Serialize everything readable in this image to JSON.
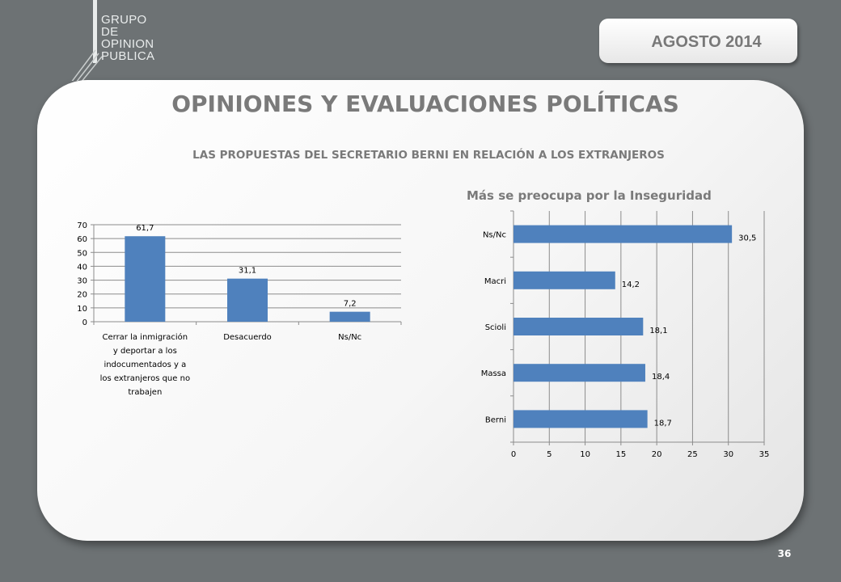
{
  "header": {
    "logo_lines": [
      "GRUPO",
      "DE",
      "OPINION",
      "PUBLICA"
    ],
    "date": "AGOSTO 2014"
  },
  "title": "OPINIONES Y EVALUACIONES POLÍTICAS",
  "subtitle": "LAS PROPUESTAS DEL SECRETARIO BERNI EN RELACIÓN A LOS EXTRANJEROS",
  "colors": {
    "bar": "#4f81bd",
    "background": "#6d7274",
    "text_gray": "#7a7a7a"
  },
  "page_number": "36",
  "chart_data": [
    {
      "type": "bar",
      "title": "",
      "categories": [
        "Cerrar la inmigración y deportar a los indocumentados y a los extranjeros que no trabajen",
        "Desacuerdo",
        "Ns/Nc"
      ],
      "category_lines": [
        [
          "Cerrar la inmigración",
          "y deportar a los",
          "indocumentados y a",
          "los extranjeros que no",
          "trabajen"
        ],
        [
          "Desacuerdo"
        ],
        [
          "Ns/Nc"
        ]
      ],
      "values": [
        61.7,
        31.1,
        7.2
      ],
      "data_labels": [
        "61,7",
        "31,1",
        "7,2"
      ],
      "ylim": [
        0,
        70
      ],
      "yticks": [
        0,
        10,
        20,
        30,
        40,
        50,
        60,
        70
      ],
      "grid": true,
      "legend": "none"
    },
    {
      "type": "bar",
      "orientation": "horizontal",
      "title": "Más se preocupa por la Inseguridad",
      "categories": [
        "Ns/Nc",
        "Macri",
        "Scioli",
        "Massa",
        "Berni"
      ],
      "values": [
        30.5,
        14.2,
        18.1,
        18.4,
        18.7
      ],
      "data_labels": [
        "30,5",
        "14,2",
        "18,1",
        "18,4",
        "18,7"
      ],
      "xlim": [
        0,
        35
      ],
      "xticks": [
        0,
        5,
        10,
        15,
        20,
        25,
        30,
        35
      ],
      "grid": true,
      "legend": "none"
    }
  ]
}
